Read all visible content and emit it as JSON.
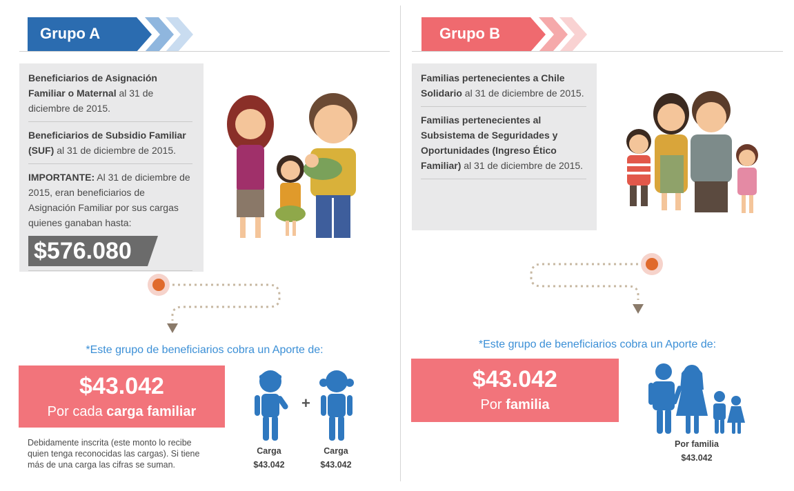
{
  "colors": {
    "blue": "#2b6cb0",
    "red": "#ef6a6f",
    "pink_box": "#f2747b",
    "icon_blue": "#2f78bf",
    "info_bg": "#e9e9ea",
    "link_blue": "#3b8fd6"
  },
  "group_a": {
    "title": "Grupo A",
    "items": [
      {
        "bold": "Beneficiarios de Asignación Familiar o Maternal",
        "text": " al 31 de diciembre de 2015."
      },
      {
        "bold": "Beneficiarios de Subsidio Familiar (SUF)",
        "text": " al 31 de diciembre de 2015."
      },
      {
        "bold": "IMPORTANTE:",
        "text": " Al 31 de diciembre de 2015, eran beneficiarios de Asignación Familiar por sus cargas quienes ganaban hasta:"
      }
    ],
    "limit_amount": "$576.080",
    "aporte_intro": "*Este grupo de beneficiarios cobra un Aporte de:",
    "amount": "$43.042",
    "per_prefix": "Por cada ",
    "per_bold": "carga familiar",
    "note": "Debidamente inscrita (este monto lo recibe quien tenga reconocidas las cargas). Si tiene más de una carga las cifras se suman.",
    "carga_1": {
      "label": "Carga",
      "value": "$43.042"
    },
    "carga_2": {
      "label": "Carga",
      "value": "$43.042"
    },
    "plus": "+"
  },
  "group_b": {
    "title": "Grupo B",
    "items": [
      {
        "bold": "Familias pertenecientes a Chile Solidario",
        "text": " al 31 de diciembre de 2015."
      },
      {
        "bold": "Familias pertenecientes al Subsistema de Seguridades y Oportunidades (Ingreso Ético Familiar)",
        "text": " al 31 de diciembre de 2015."
      }
    ],
    "aporte_intro": "*Este grupo de beneficiarios cobra un Aporte de:",
    "amount": "$43.042",
    "per_prefix": "Por ",
    "per_bold": "familia",
    "familia": {
      "label": "Por familia",
      "value": "$43.042"
    }
  }
}
